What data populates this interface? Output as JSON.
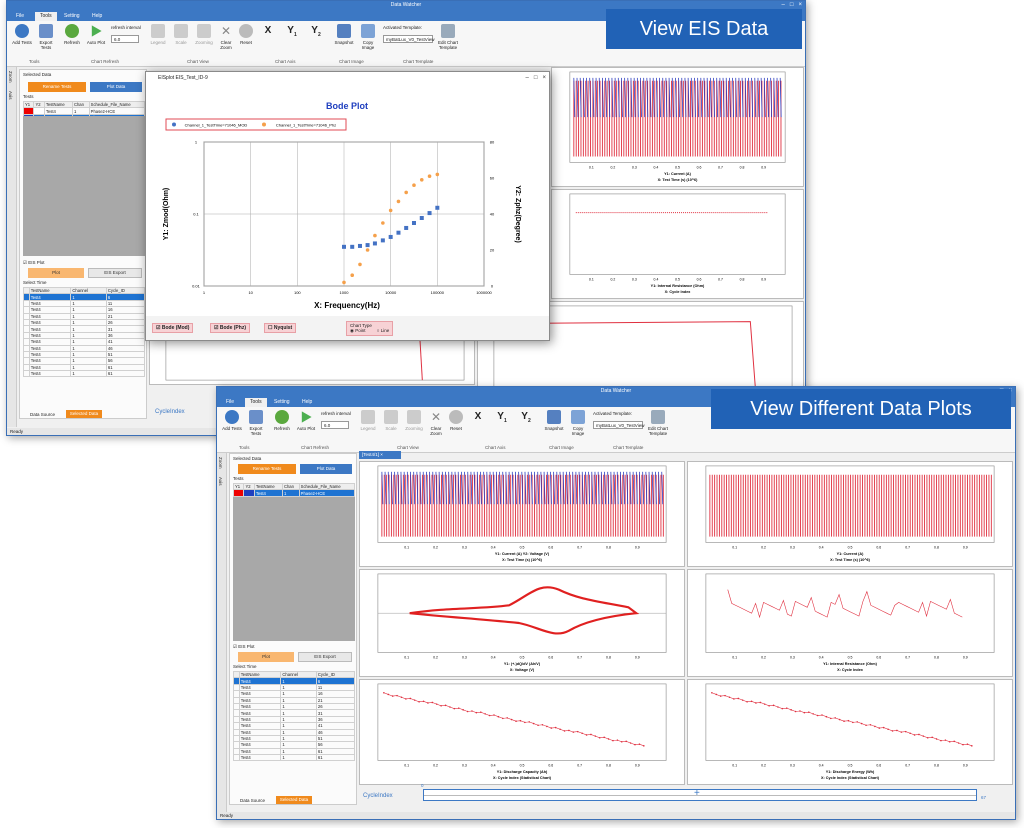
{
  "win1": {
    "title": "Data Watcher",
    "tabs": [
      "File",
      "Tools",
      "Setting",
      "Help"
    ],
    "ribbon": {
      "buttons": [
        "Add Tests",
        "Export Tests",
        "Refresh",
        "Auto Plot",
        "Legend",
        "Scale",
        "Zooming",
        "Clear Zoom",
        "Reset",
        "Snapshot",
        "Copy Image",
        "Edit Chart Template"
      ],
      "refresh_interval_label": "refresh interval",
      "refresh_interval_value": "6.0",
      "activated_template_label": "Activated Template:",
      "activated_template_value": "myBatLux_V0_TestView",
      "groups": [
        "Tools",
        "Chart Refresh",
        "Chart View",
        "Chart Axis",
        "Chart Image",
        "Chart Template"
      ]
    },
    "side_labels": [
      "Zoom",
      "Axis"
    ],
    "left": {
      "selected_data": "Selected Data",
      "rename_button": "Rename Tests",
      "plot_data_button": "Plot Data",
      "tests_label": "Tests",
      "table_headers": [
        "Y1",
        "Y2",
        "TestName",
        "Chan",
        "Schedule_File_Name"
      ],
      "rows": [
        {
          "name": "Test4",
          "chan": "1",
          "sched": "Phase2-HCE"
        },
        {
          "name": "Test4",
          "chan": "2",
          "sched": "Phase2-HCE"
        }
      ],
      "eis_plot": "EIS Plot",
      "plot_button": "Plot",
      "eis_export_button": "EIS Export",
      "select_time": "Select Time",
      "time_headers": [
        "TestName",
        "Channel",
        "Cycle_ID"
      ],
      "time_rows": [
        [
          "Test4",
          "1",
          "6"
        ],
        [
          "Test4",
          "1",
          "11"
        ],
        [
          "Test4",
          "1",
          "16"
        ],
        [
          "Test4",
          "1",
          "21"
        ],
        [
          "Test4",
          "1",
          "26"
        ],
        [
          "Test4",
          "1",
          "31"
        ],
        [
          "Test4",
          "1",
          "36"
        ],
        [
          "Test4",
          "1",
          "41"
        ],
        [
          "Test4",
          "1",
          "46"
        ],
        [
          "Test4",
          "1",
          "51"
        ],
        [
          "Test4",
          "1",
          "56"
        ],
        [
          "Test4",
          "1",
          "61"
        ],
        [
          "Test4",
          "1",
          "61"
        ]
      ],
      "bottom_tabs": [
        "Data Source",
        "Selected Data"
      ]
    },
    "status": "Ready",
    "cycle_index": "CycleIndex",
    "plot_labels": {
      "p1": [
        "Y1: Current (A)",
        "X: Test Time (s) (10^6)"
      ],
      "p2": [
        "Y1: Internal Resistance (Ohm)",
        "X: Cycle Index"
      ]
    },
    "banner": "View EIS Data"
  },
  "dialog": {
    "title": "EISplot EIS_Test_ID-9",
    "chart_title": "Bode Plot",
    "legend": [
      "Channel_1_TestTime=71046_MOD",
      "Channel_1_TestTime=71046_Phz"
    ],
    "ylabel": "Y1: Zmod(Ohm)",
    "y2label": "Y2: Zphz(Degree)",
    "xlabel": "X: Frequency(Hz)",
    "checkboxes": [
      "Bode (Mod)",
      "Bode (Phz)",
      "Nyquist"
    ],
    "chart_type_label": "Chart Type",
    "chart_type_options": [
      "Point",
      "Line"
    ],
    "chart_type_selected": "Point"
  },
  "win2": {
    "title": "Data Watcher",
    "tabs": [
      "File",
      "Tools",
      "Setting",
      "Help"
    ],
    "tab_strip": "[Test4/1]",
    "banner": "View Different Data Plots",
    "cycle_index": "CycleIndex",
    "status": "Ready",
    "slider": {
      "value": 0,
      "max": 67
    },
    "plots": [
      {
        "ylabel": "Y1: Current (A)   Y2: Voltage (V)",
        "xlabel": "X: Test Time (s) (10^6)"
      },
      {
        "ylabel": "Y1: Current (A)",
        "xlabel": "X: Test Time (s) (10^6)"
      },
      {
        "ylabel": "Y1: (+-)dQ/dV (Ah/V)",
        "xlabel": "X: Voltage (V)"
      },
      {
        "ylabel": "Y1: Internal Resistance (Ohm)",
        "xlabel": "X: Cycle Index"
      },
      {
        "ylabel": "Y1: Discharge Capacity (Ah)",
        "xlabel": "X: Cycle Index  (Statistical Chart)"
      },
      {
        "ylabel": "Y1: Discharge Energy (Wh)",
        "xlabel": "X: Cycle Index  (Statistical Chart)"
      }
    ]
  },
  "chart_data": [
    {
      "type": "scatter",
      "title": "Bode Plot",
      "xlabel": "X: Frequency(Hz)",
      "ylabel": "Y1: Zmod(Ohm)",
      "y2label": "Y2: Zphz(Degree)",
      "x_scale": "log",
      "y_scale": "log",
      "xlim": [
        1,
        1000000
      ],
      "ylim": [
        0.01,
        1
      ],
      "y2lim": [
        0,
        80
      ],
      "series": [
        {
          "name": "Channel_1_TestTime=71046_MOD",
          "axis": "y1",
          "color": "#4472c4",
          "x": [
            1000,
            1500,
            2200,
            3200,
            4600,
            6800,
            10000,
            14700,
            21500,
            31600,
            46400,
            68100,
            100000
          ],
          "y": [
            0.035,
            0.035,
            0.036,
            0.037,
            0.039,
            0.043,
            0.048,
            0.055,
            0.064,
            0.075,
            0.088,
            0.103,
            0.122
          ]
        },
        {
          "name": "Channel_1_TestTime=71046_Phz",
          "axis": "y2",
          "color": "#f5a04a",
          "x": [
            1000,
            1500,
            2200,
            3200,
            4600,
            6800,
            10000,
            14700,
            21500,
            31600,
            46400,
            68100,
            100000
          ],
          "y": [
            2,
            6,
            12,
            20,
            28,
            35,
            42,
            47,
            52,
            56,
            59,
            61,
            62
          ]
        }
      ]
    }
  ]
}
